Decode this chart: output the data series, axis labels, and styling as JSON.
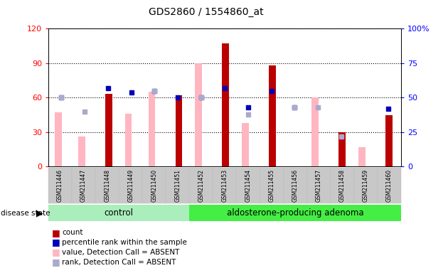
{
  "title": "GDS2860 / 1554860_at",
  "samples": [
    "GSM211446",
    "GSM211447",
    "GSM211448",
    "GSM211449",
    "GSM211450",
    "GSM211451",
    "GSM211452",
    "GSM211453",
    "GSM211454",
    "GSM211455",
    "GSM211456",
    "GSM211457",
    "GSM211458",
    "GSM211459",
    "GSM211460"
  ],
  "count": [
    null,
    null,
    63,
    null,
    null,
    62,
    null,
    107,
    null,
    88,
    null,
    null,
    30,
    null,
    45
  ],
  "percentile_rank": [
    50,
    null,
    57,
    54,
    55,
    50,
    50,
    57,
    43,
    55,
    43,
    null,
    null,
    null,
    42
  ],
  "value_absent": [
    47,
    26,
    null,
    46,
    65,
    null,
    90,
    null,
    38,
    null,
    null,
    60,
    null,
    17,
    null
  ],
  "rank_absent": [
    50,
    40,
    null,
    null,
    55,
    null,
    50,
    null,
    38,
    null,
    43,
    43,
    22,
    null,
    null
  ],
  "control_count": 6,
  "ylim_left": [
    0,
    120
  ],
  "ylim_right": [
    0,
    100
  ],
  "yticks_left": [
    0,
    30,
    60,
    90,
    120
  ],
  "yticks_right": [
    0,
    25,
    50,
    75,
    100
  ],
  "group_labels": [
    "control",
    "aldosterone-producing adenoma"
  ],
  "bar_color_count": "#BB0000",
  "bar_color_absent": "#FFB6C1",
  "marker_color_rank": "#0000BB",
  "marker_color_rank_absent": "#AAAACC",
  "sample_box_color": "#C8C8C8",
  "ctrl_color": "#AAEEBB",
  "aden_color": "#44EE44",
  "plot_bg": "#FFFFFF"
}
